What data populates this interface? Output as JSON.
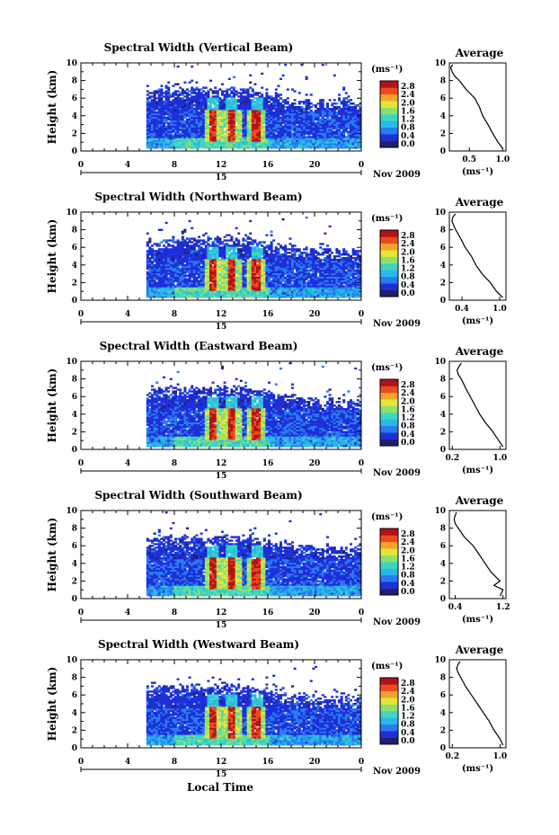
{
  "chart_data": {
    "type": "heatmap",
    "xlabel": "Local Time",
    "day_label": "15",
    "month_label": "Nov 2009",
    "ylabel": "Height (km)",
    "x_ticks": [
      "0",
      "4",
      "8",
      "12",
      "16",
      "20",
      "0"
    ],
    "y_ticks": [
      "0",
      "2",
      "4",
      "6",
      "8",
      "10"
    ],
    "xlim": [
      0,
      24
    ],
    "ylim": [
      0,
      10
    ],
    "colorbar": {
      "unit": "(ms⁻¹)",
      "ticks": [
        "0.0",
        "0.4",
        "0.8",
        "1.2",
        "1.6",
        "2.0",
        "2.4",
        "2.8"
      ],
      "range": [
        0,
        2.8
      ],
      "colors": [
        "#1f1f6e",
        "#1e2fd8",
        "#2a7af0",
        "#29b8e8",
        "#3ed6c2",
        "#8ee06a",
        "#e4e43a",
        "#f3a42a",
        "#ec4a1f",
        "#b3121a"
      ]
    },
    "data_coverage": {
      "time_start": 5.6,
      "time_end": 24,
      "height_min": 0.3,
      "top_height_by_time": [
        [
          5.6,
          6.8
        ],
        [
          8,
          6.9
        ],
        [
          10,
          7.0
        ],
        [
          12,
          7.0
        ],
        [
          14,
          6.9
        ],
        [
          16,
          6.5
        ],
        [
          18,
          6.0
        ],
        [
          20,
          5.6
        ],
        [
          22,
          5.6
        ],
        [
          24,
          5.7
        ]
      ],
      "enhanced_columns_time": [
        11.2,
        12.8,
        14.9
      ],
      "enhanced_columns_height": [
        1.0,
        4.6
      ],
      "peak_width": 2.8
    },
    "panels": [
      {
        "title": "Spectral Width (Vertical Beam)",
        "average": {
          "title": "Average",
          "xlabel": "(ms⁻¹)",
          "x_ticks": [
            "0.5",
            "1.0"
          ],
          "xlim": [
            0.2,
            1.05
          ],
          "height": [
            0.3,
            1,
            2,
            3,
            4,
            5,
            6,
            7,
            8,
            8.5,
            9,
            9.5,
            9.8
          ],
          "value": [
            1.0,
            0.93,
            0.85,
            0.78,
            0.7,
            0.65,
            0.58,
            0.45,
            0.35,
            0.28,
            0.24,
            0.22,
            0.25
          ]
        }
      },
      {
        "title": "Spectral Width (Northward Beam)",
        "average": {
          "title": "Average",
          "xlabel": "(ms⁻¹)",
          "x_ticks": [
            "0.4",
            "1.0"
          ],
          "xlim": [
            0.2,
            1.1
          ],
          "height": [
            0.3,
            1,
            2,
            3,
            4,
            5,
            6,
            7,
            8,
            8.5,
            9,
            9.5,
            9.8
          ],
          "value": [
            1.05,
            0.95,
            0.85,
            0.72,
            0.62,
            0.55,
            0.45,
            0.38,
            0.3,
            0.27,
            0.24,
            0.26,
            0.3
          ]
        }
      },
      {
        "title": "Spectral Width (Eastward Beam)",
        "average": {
          "title": "Average",
          "xlabel": "(ms⁻¹)",
          "x_ticks": [
            "0.2",
            "1.0"
          ],
          "xlim": [
            0.15,
            1.1
          ],
          "height": [
            0.3,
            1,
            2,
            3,
            4,
            5,
            6,
            7,
            8,
            8.5,
            9,
            9.5,
            9.8
          ],
          "value": [
            1.05,
            0.98,
            0.88,
            0.76,
            0.66,
            0.58,
            0.5,
            0.42,
            0.35,
            0.3,
            0.28,
            0.32,
            0.35
          ]
        }
      },
      {
        "title": "Spectral Width (Southward Beam)",
        "average": {
          "title": "Average",
          "xlabel": "(ms⁻¹)",
          "x_ticks": [
            "0.4",
            "1.2"
          ],
          "xlim": [
            0.3,
            1.25
          ],
          "height": [
            0.3,
            1,
            1.5,
            2,
            3,
            4,
            5,
            6,
            7,
            8,
            8.5,
            9,
            9.5,
            9.8
          ],
          "value": [
            1.15,
            1.2,
            1.05,
            1.15,
            1.0,
            0.9,
            0.8,
            0.7,
            0.55,
            0.45,
            0.4,
            0.38,
            0.4,
            0.42
          ]
        }
      },
      {
        "title": "Spectral Width (Westward Beam)",
        "average": {
          "title": "Average",
          "xlabel": "(ms⁻¹)",
          "x_ticks": [
            "0.2",
            "1.0"
          ],
          "xlim": [
            0.15,
            1.1
          ],
          "height": [
            0.3,
            1,
            2,
            3,
            4,
            5,
            6,
            7,
            8,
            8.5,
            9,
            9.5,
            9.8
          ],
          "value": [
            1.05,
            1.0,
            0.9,
            0.82,
            0.72,
            0.62,
            0.52,
            0.42,
            0.34,
            0.3,
            0.27,
            0.3,
            0.33
          ]
        }
      }
    ]
  }
}
